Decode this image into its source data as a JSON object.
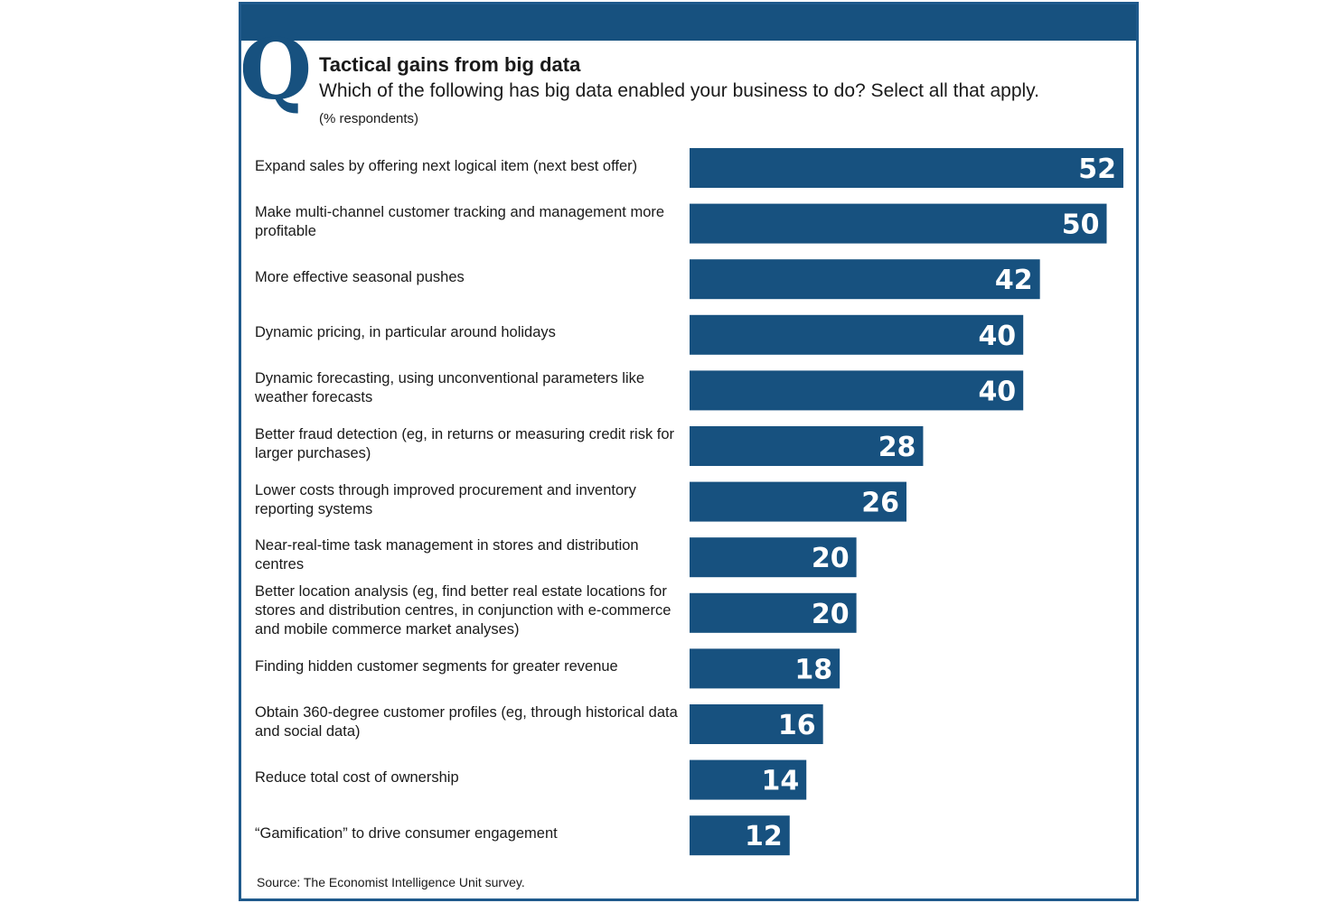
{
  "chart_data": {
    "type": "bar",
    "orientation": "horizontal",
    "title": "Tactical gains from big data",
    "subtitle": "Which of the following has big data enabled your business to do?  Select all that apply.",
    "unit_label": "(% respondents)",
    "source": "Source: The Economist Intelligence Unit survey.",
    "badge_letter": "Q",
    "categories": [
      "Expand sales by offering next logical item (next best offer)",
      "Make multi-channel customer tracking and management more profitable",
      "More effective seasonal pushes",
      "Dynamic pricing, in particular around holidays",
      "Dynamic forecasting, using unconventional parameters like weather forecasts",
      "Better fraud detection (eg, in returns or measuring credit risk for larger purchases)",
      "Lower costs through improved procurement and inventory reporting systems",
      "Near-real-time task management in stores and distribution centres",
      "Better location analysis (eg, find better real estate locations for stores and distribution centres, in conjunction with e-commerce and mobile commerce market analyses)",
      "Finding hidden customer segments for greater revenue",
      "Obtain 360-degree customer profiles (eg, through historical data and social data)",
      "Reduce total cost of ownership",
      "“Gamification” to drive consumer engagement"
    ],
    "values": [
      52,
      50,
      42,
      40,
      40,
      28,
      26,
      20,
      20,
      18,
      16,
      14,
      12
    ],
    "grid": false,
    "legend": "none",
    "colors": {
      "bar": "#17517f",
      "bar_label": "#ffffff",
      "header": "#17517f"
    }
  }
}
